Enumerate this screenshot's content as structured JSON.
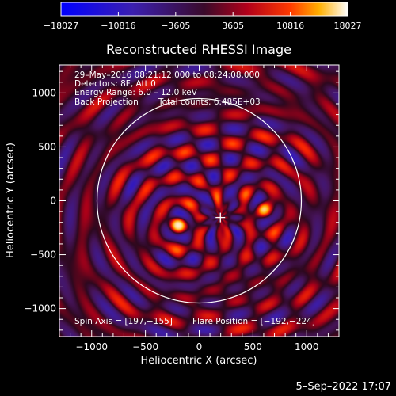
{
  "chart_data": {
    "type": "heatmap",
    "title": "Reconstructed RHESSI Image",
    "xlabel": "Heliocentric X (arcsec)",
    "ylabel": "Heliocentric Y (arcsec)",
    "xlim": [
      -1300,
      1300
    ],
    "ylim": [
      -1260,
      1260
    ],
    "x_ticks": [
      -1000,
      -500,
      0,
      500,
      1000
    ],
    "y_ticks": [
      -1000,
      -500,
      0,
      500,
      1000
    ],
    "x_tick_labels": [
      "−1000",
      "−500",
      "0",
      "500",
      "1000"
    ],
    "y_tick_labels": [
      "−1000",
      "−500",
      "0",
      "500",
      "1000"
    ],
    "colorbar": {
      "min": -18027,
      "max": 18027,
      "ticks": [
        -18027,
        -10816,
        -3605,
        3605,
        10816,
        18027
      ],
      "tick_labels": [
        "−18027",
        "−10816",
        "−3605",
        "3605",
        "10816",
        "18027"
      ],
      "colormap": "blue-purple-red-yellow-white"
    },
    "annotations": [
      "29–May–2016 08:21:12.000 to 08:24:08.000",
      "Detectors: 8F, Att 0",
      "Energy Range: 6.0 – 12.0 keV",
      "Back Projection",
      "Total counts: 6.485E+03"
    ],
    "footer_left": "Spin Axis = [197,−155]",
    "footer_right": "Flare Position = [−192,−224]",
    "solar_limb_radius_arcsec": 950,
    "spin_axis": [
      197,
      -155
    ],
    "sources": [
      {
        "x": -192,
        "y": -224,
        "peak": 18027
      },
      {
        "x": 600,
        "y": -80,
        "peak": 15000
      }
    ],
    "grid": false
  },
  "footer": {
    "date": "5–Sep–2022 17:07"
  },
  "colors": {
    "background": "#000000",
    "axes": "#ffffff",
    "limb": "#ffffff",
    "negative_low": "#0000ff",
    "positive_high": "#ffffff"
  }
}
